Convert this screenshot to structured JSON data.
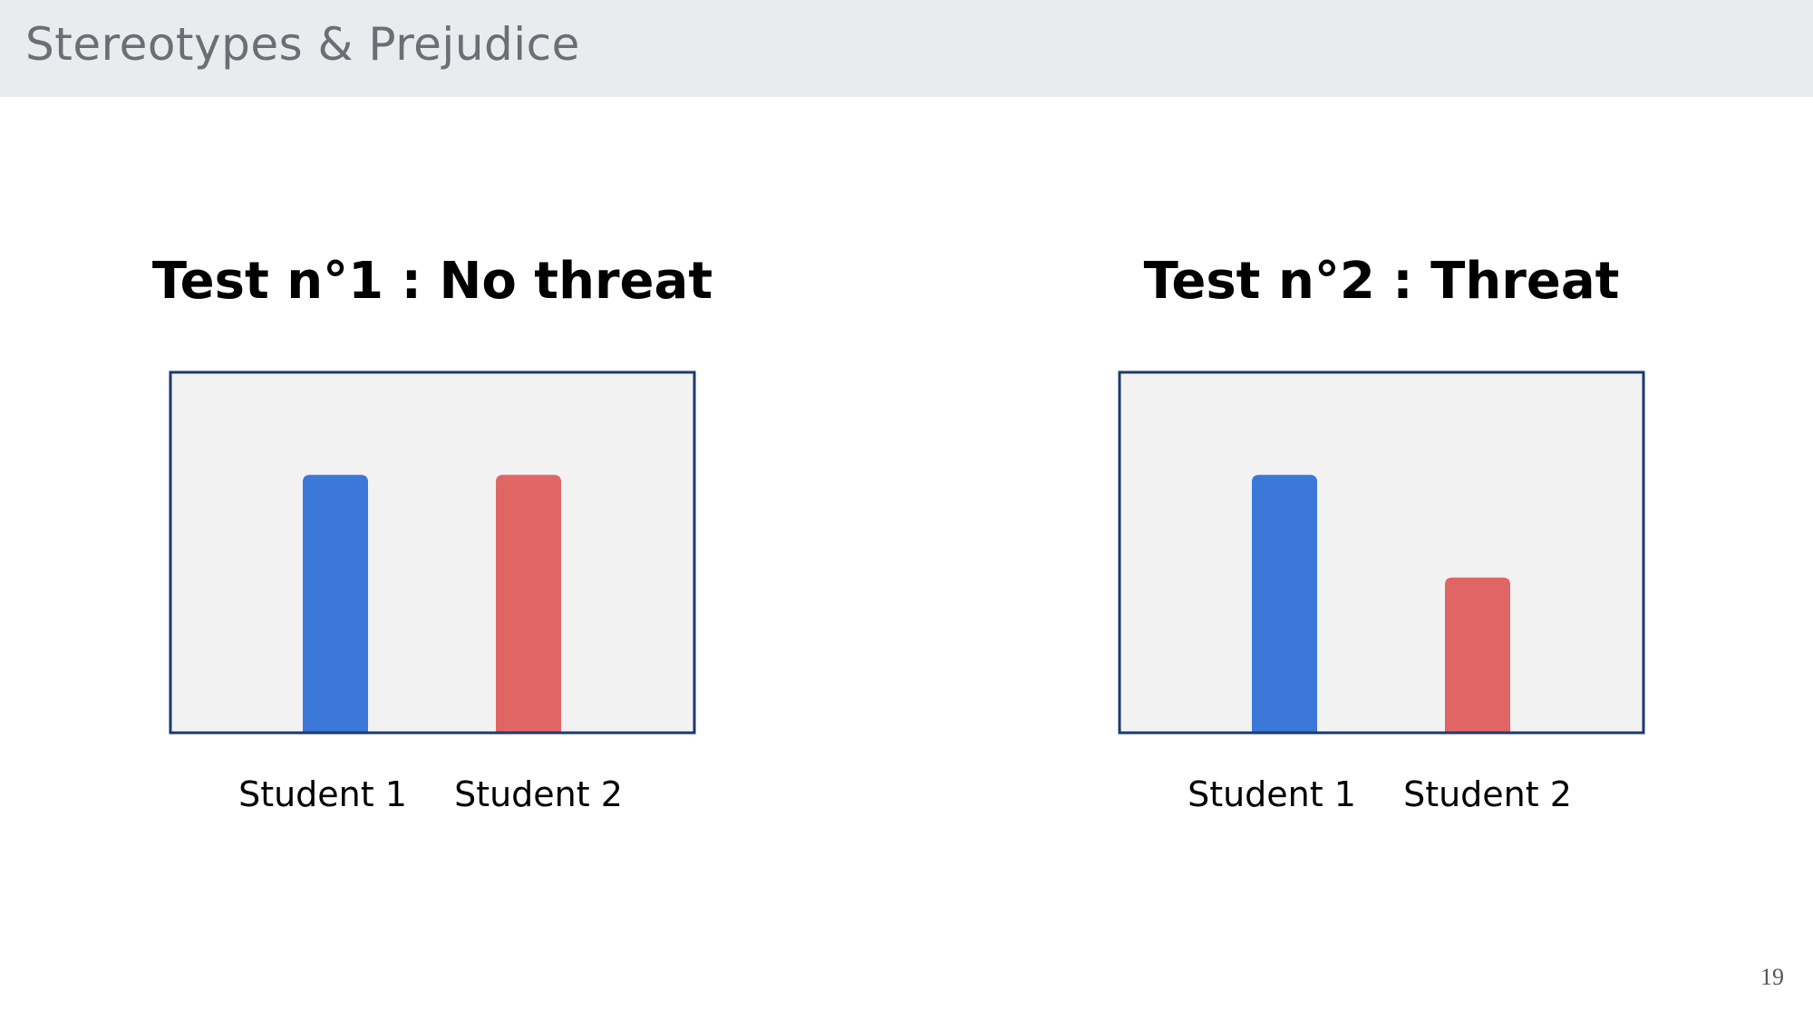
{
  "header": {
    "title": "Stereotypes & Prejudice"
  },
  "page_number": "19",
  "colors": {
    "header_bg": "#e9ecee",
    "plot_bg": "#f2f2f2",
    "plot_border": "#1c3a6e",
    "student1": "#3c78d8",
    "student2": "#e06666"
  },
  "chart_data": [
    {
      "type": "bar",
      "title": "Test n°1 : No threat",
      "categories": [
        "Student 1",
        "Student 2"
      ],
      "values": [
        100,
        100
      ],
      "ylim": [
        0,
        140
      ],
      "xlabel": "",
      "ylabel": "",
      "grid": false
    },
    {
      "type": "bar",
      "title": "Test n°2 : Threat",
      "categories": [
        "Student 1",
        "Student 2"
      ],
      "values": [
        100,
        60
      ],
      "ylim": [
        0,
        140
      ],
      "xlabel": "",
      "ylabel": "",
      "grid": false
    }
  ]
}
